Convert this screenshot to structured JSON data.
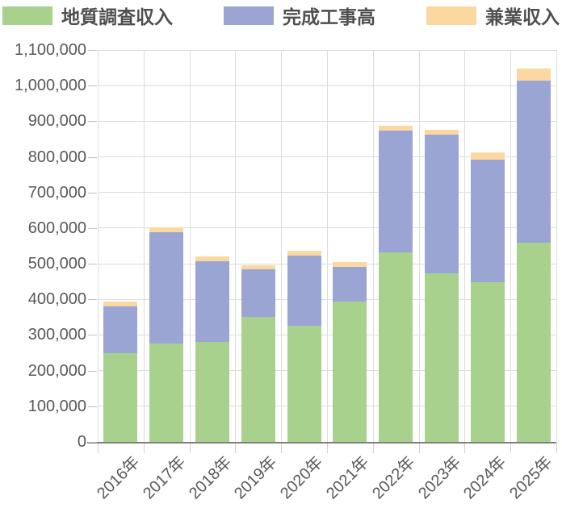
{
  "page": {
    "background": "#ffffff"
  },
  "colors": {
    "grid": "#dcdcdc",
    "axis_line": "#7f7f7f",
    "tick": "#c2c2c2",
    "tick_label": "#595959",
    "legend_text": "#4f4f4f"
  },
  "chart_data": {
    "type": "bar",
    "stacked": true,
    "title": "",
    "xlabel": "",
    "ylabel": "",
    "legend_position": "top",
    "grid": true,
    "categories": [
      "2016年",
      "2017年",
      "2018年",
      "2019年",
      "2020年",
      "2021年",
      "2022年",
      "2023年",
      "2024年",
      "2025年"
    ],
    "series": [
      {
        "name": "地質調査収入",
        "color": "#a8d18d",
        "values": [
          249000,
          276000,
          280000,
          351000,
          325000,
          394000,
          532000,
          474000,
          449000,
          559000
        ]
      },
      {
        "name": "完成工事高",
        "color": "#9aa5d3",
        "values": [
          131000,
          312000,
          227000,
          134000,
          199000,
          98000,
          342000,
          389000,
          343000,
          456000
        ]
      },
      {
        "name": "兼業収入",
        "color": "#fbd8a2",
        "values": [
          13000,
          13000,
          14000,
          11000,
          13000,
          13000,
          14000,
          14000,
          20000,
          32000
        ]
      }
    ],
    "totals": [
      393000,
      601000,
      521000,
      496000,
      537000,
      505000,
      888000,
      877000,
      812000,
      1047000
    ],
    "ylim": [
      0,
      1100000
    ],
    "ytick_step": 100000,
    "yticks": [
      0,
      100000,
      200000,
      300000,
      400000,
      500000,
      600000,
      700000,
      800000,
      900000,
      1000000,
      1100000
    ],
    "ytick_labels": [
      "0",
      "100,000",
      "200,000",
      "300,000",
      "400,000",
      "500,000",
      "600,000",
      "700,000",
      "800,000",
      "900,000",
      "1,000,000",
      "1,100,000"
    ]
  }
}
